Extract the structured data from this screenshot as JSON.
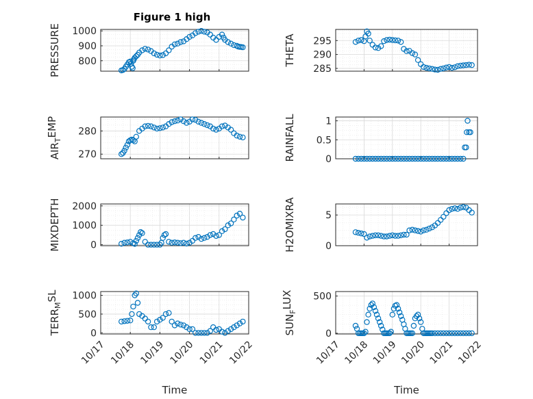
{
  "figure": {
    "title": "Figure 1 high",
    "marker_color": "#0072BD"
  },
  "chart_data": [
    {
      "type": "scatter",
      "title": "Figure 1 high",
      "ylabel": "PRESSURE",
      "xlabel": "",
      "xlim": [
        0,
        5
      ],
      "ylim": [
        730,
        1010
      ],
      "yticks": [
        800,
        900,
        1000
      ],
      "yticklabels": [
        "800",
        "900",
        "1000"
      ],
      "x": [
        0.7,
        0.75,
        0.8,
        0.85,
        0.9,
        0.95,
        1.0,
        1.02,
        1.05,
        1.08,
        1.1,
        1.12,
        1.15,
        1.2,
        1.25,
        1.3,
        1.4,
        1.5,
        1.6,
        1.7,
        1.8,
        1.9,
        2.0,
        2.1,
        2.2,
        2.3,
        2.4,
        2.5,
        2.6,
        2.7,
        2.8,
        2.9,
        3.0,
        3.1,
        3.2,
        3.3,
        3.4,
        3.5,
        3.6,
        3.7,
        3.8,
        3.9,
        4.0,
        4.1,
        4.15,
        4.2,
        4.3,
        4.4,
        4.5,
        4.6,
        4.65,
        4.7,
        4.75,
        4.8
      ],
      "y": [
        735,
        738,
        745,
        760,
        775,
        790,
        795,
        780,
        760,
        750,
        800,
        810,
        820,
        830,
        840,
        855,
        870,
        880,
        875,
        865,
        850,
        840,
        835,
        838,
        850,
        870,
        895,
        910,
        915,
        925,
        930,
        945,
        960,
        970,
        985,
        995,
        1000,
        995,
        990,
        975,
        955,
        940,
        960,
        975,
        955,
        940,
        925,
        915,
        905,
        900,
        895,
        893,
        892,
        890
      ]
    },
    {
      "type": "scatter",
      "ylabel": "THETA",
      "xlabel": "",
      "xlim": [
        0,
        5
      ],
      "ylim": [
        284,
        299
      ],
      "yticks": [
        285,
        290,
        295
      ],
      "yticklabels": [
        "285",
        "290",
        "295"
      ],
      "x": [
        0.7,
        0.8,
        0.9,
        1.0,
        1.05,
        1.1,
        1.15,
        1.2,
        1.3,
        1.4,
        1.5,
        1.6,
        1.7,
        1.8,
        1.9,
        2.0,
        2.1,
        2.2,
        2.3,
        2.4,
        2.5,
        2.6,
        2.7,
        2.8,
        2.9,
        3.0,
        3.1,
        3.2,
        3.3,
        3.4,
        3.5,
        3.6,
        3.7,
        3.8,
        3.9,
        4.0,
        4.1,
        4.2,
        4.3,
        4.4,
        4.5,
        4.6,
        4.7,
        4.8
      ],
      "y": [
        294.5,
        295,
        295.2,
        294.8,
        296.5,
        298.3,
        297.5,
        295,
        293.5,
        292.5,
        292.3,
        293,
        294.8,
        295.2,
        295.3,
        295.2,
        295.1,
        295,
        294.5,
        292,
        291.2,
        291.3,
        290.5,
        290,
        288,
        286.5,
        285.5,
        285.2,
        285,
        284.8,
        284.6,
        284.5,
        284.8,
        285,
        285.3,
        285.5,
        285.2,
        285.4,
        285.8,
        286,
        286.1,
        286.2,
        286.3,
        286.2
      ]
    },
    {
      "type": "scatter",
      "ylabel": "AIR_TEMP",
      "xlabel": "",
      "xlim": [
        0,
        5
      ],
      "ylim": [
        268,
        286
      ],
      "yticks": [
        270,
        280
      ],
      "yticklabels": [
        "270",
        "280"
      ],
      "x": [
        0.7,
        0.75,
        0.8,
        0.85,
        0.9,
        0.95,
        1.0,
        1.05,
        1.1,
        1.15,
        1.2,
        1.3,
        1.4,
        1.5,
        1.6,
        1.7,
        1.8,
        1.9,
        2.0,
        2.1,
        2.2,
        2.3,
        2.4,
        2.5,
        2.6,
        2.7,
        2.8,
        2.9,
        3.0,
        3.1,
        3.2,
        3.3,
        3.4,
        3.5,
        3.6,
        3.7,
        3.8,
        3.9,
        4.0,
        4.1,
        4.2,
        4.3,
        4.4,
        4.5,
        4.6,
        4.7,
        4.8
      ],
      "y": [
        270,
        270.5,
        271.5,
        272.8,
        274,
        275.5,
        276,
        276.3,
        276,
        275.5,
        277.5,
        280,
        281,
        282,
        282.2,
        282,
        281.5,
        281,
        281.2,
        281.5,
        282,
        283,
        283.8,
        284.2,
        284.5,
        285,
        284.2,
        283.5,
        284,
        285,
        284.8,
        284,
        283.5,
        283,
        282.5,
        282,
        281,
        280.5,
        281,
        282,
        282.3,
        281.5,
        280.5,
        279,
        278,
        277.5,
        277.2
      ]
    },
    {
      "type": "scatter",
      "ylabel": "RAINFALL",
      "xlabel": "",
      "xlim": [
        0,
        5
      ],
      "ylim": [
        0,
        1.1
      ],
      "yticks": [
        0,
        0.5,
        1
      ],
      "yticklabels": [
        "0",
        "0.5",
        "1"
      ],
      "x": [
        0.7,
        0.8,
        0.9,
        1.0,
        1.1,
        1.2,
        1.3,
        1.4,
        1.5,
        1.6,
        1.7,
        1.8,
        1.9,
        2.0,
        2.1,
        2.2,
        2.3,
        2.4,
        2.5,
        2.6,
        2.7,
        2.8,
        2.9,
        3.0,
        3.1,
        3.2,
        3.3,
        3.4,
        3.5,
        3.6,
        3.7,
        3.8,
        3.9,
        4.0,
        4.1,
        4.2,
        4.3,
        4.4,
        4.5,
        4.55,
        4.6,
        4.62,
        4.65,
        4.7,
        4.75
      ],
      "y": [
        0,
        0,
        0,
        0,
        0,
        0,
        0,
        0,
        0,
        0,
        0,
        0,
        0,
        0,
        0,
        0,
        0,
        0,
        0,
        0,
        0,
        0,
        0,
        0,
        0,
        0,
        0,
        0,
        0,
        0,
        0,
        0,
        0,
        0,
        0,
        0,
        0,
        0,
        0,
        0.3,
        0.3,
        0.7,
        1.0,
        0.7,
        0.7
      ]
    },
    {
      "type": "scatter",
      "ylabel": "MIXDEPTH",
      "xlabel": "",
      "xlim": [
        0,
        5
      ],
      "ylim": [
        -50,
        2100
      ],
      "yticks": [
        0,
        1000,
        2000
      ],
      "yticklabels": [
        "0",
        "1000",
        "2000"
      ],
      "x": [
        0.7,
        0.8,
        0.9,
        1.0,
        1.1,
        1.15,
        1.2,
        1.25,
        1.3,
        1.35,
        1.4,
        1.5,
        1.6,
        1.7,
        1.8,
        1.9,
        2.0,
        2.05,
        2.1,
        2.15,
        2.2,
        2.3,
        2.4,
        2.5,
        2.6,
        2.7,
        2.8,
        2.9,
        3.0,
        3.1,
        3.2,
        3.3,
        3.4,
        3.5,
        3.6,
        3.7,
        3.8,
        3.9,
        4.0,
        4.1,
        4.2,
        4.3,
        4.4,
        4.5,
        4.6,
        4.7,
        4.8
      ],
      "y": [
        50,
        100,
        120,
        150,
        80,
        40,
        200,
        350,
        500,
        650,
        600,
        150,
        0,
        0,
        0,
        0,
        0,
        100,
        350,
        500,
        550,
        150,
        100,
        120,
        100,
        80,
        100,
        60,
        100,
        200,
        350,
        400,
        300,
        350,
        400,
        500,
        550,
        450,
        500,
        700,
        800,
        1000,
        1100,
        1300,
        1500,
        1600,
        1400
      ]
    },
    {
      "type": "scatter",
      "ylabel": "H2OMIXRA",
      "xlabel": "",
      "xlim": [
        0,
        5
      ],
      "ylim": [
        0,
        6.8
      ],
      "yticks": [
        0,
        5
      ],
      "yticklabels": [
        "0",
        "5"
      ],
      "x": [
        0.7,
        0.8,
        0.9,
        1.0,
        1.1,
        1.2,
        1.3,
        1.4,
        1.5,
        1.6,
        1.7,
        1.8,
        1.9,
        2.0,
        2.1,
        2.2,
        2.3,
        2.4,
        2.5,
        2.6,
        2.7,
        2.8,
        2.9,
        3.0,
        3.1,
        3.2,
        3.3,
        3.4,
        3.5,
        3.6,
        3.7,
        3.8,
        3.9,
        4.0,
        4.1,
        4.2,
        4.3,
        4.4,
        4.5,
        4.6,
        4.7,
        4.8
      ],
      "y": [
        2.2,
        2.1,
        2.0,
        1.9,
        1.3,
        1.5,
        1.6,
        1.7,
        1.7,
        1.6,
        1.5,
        1.5,
        1.6,
        1.7,
        1.6,
        1.6,
        1.7,
        1.8,
        1.8,
        2.5,
        2.6,
        2.5,
        2.4,
        2.3,
        2.5,
        2.6,
        2.8,
        3.0,
        3.3,
        3.7,
        4.2,
        4.7,
        5.3,
        5.8,
        6.0,
        6.1,
        6.0,
        6.2,
        6.3,
        6.2,
        5.8,
        5.4
      ]
    },
    {
      "type": "scatter",
      "ylabel": "TERR_MSL",
      "xlabel": "Time",
      "xlim": [
        0,
        5
      ],
      "ylim": [
        -30,
        1100
      ],
      "yticks": [
        0,
        500,
        1000
      ],
      "yticklabels": [
        "0",
        "500",
        "1000"
      ],
      "xticklabels": [
        "10/17",
        "10/18",
        "10/19",
        "10/20",
        "10/21",
        "10/22"
      ],
      "x": [
        0.7,
        0.8,
        0.9,
        1.0,
        1.05,
        1.1,
        1.15,
        1.2,
        1.25,
        1.3,
        1.4,
        1.5,
        1.6,
        1.7,
        1.8,
        1.9,
        2.0,
        2.1,
        2.2,
        2.3,
        2.4,
        2.5,
        2.6,
        2.7,
        2.8,
        2.9,
        3.0,
        3.1,
        3.2,
        3.3,
        3.4,
        3.5,
        3.6,
        3.7,
        3.8,
        3.9,
        4.0,
        4.1,
        4.2,
        4.3,
        4.4,
        4.5,
        4.6,
        4.7,
        4.8
      ],
      "y": [
        300,
        310,
        320,
        330,
        500,
        700,
        1000,
        1050,
        800,
        500,
        450,
        380,
        300,
        150,
        150,
        300,
        350,
        400,
        500,
        530,
        300,
        200,
        250,
        220,
        200,
        150,
        100,
        100,
        0,
        0,
        0,
        0,
        0,
        50,
        150,
        80,
        100,
        30,
        0,
        50,
        100,
        150,
        200,
        250,
        300
      ]
    },
    {
      "type": "scatter",
      "ylabel": "SUN_FLUX",
      "xlabel": "Time",
      "xlim": [
        0,
        5
      ],
      "ylim": [
        -10,
        560
      ],
      "yticks": [
        0,
        500
      ],
      "yticklabels": [
        "0",
        "500"
      ],
      "xticklabels": [
        "10/17",
        "10/18",
        "10/19",
        "10/20",
        "10/21",
        "10/22"
      ],
      "x": [
        0.7,
        0.75,
        0.8,
        0.85,
        0.9,
        0.95,
        1.0,
        1.05,
        1.1,
        1.15,
        1.2,
        1.25,
        1.3,
        1.35,
        1.4,
        1.45,
        1.5,
        1.55,
        1.6,
        1.65,
        1.7,
        1.75,
        1.8,
        1.85,
        1.9,
        1.95,
        2.0,
        2.05,
        2.1,
        2.15,
        2.2,
        2.25,
        2.3,
        2.35,
        2.4,
        2.45,
        2.5,
        2.55,
        2.6,
        2.65,
        2.7,
        2.75,
        2.8,
        2.85,
        2.9,
        2.95,
        3.0,
        3.05,
        3.1,
        3.15,
        3.2,
        3.25,
        3.3,
        3.35,
        3.4,
        3.5,
        3.6,
        3.7,
        3.8,
        3.9,
        4.0,
        4.1,
        4.2,
        4.3,
        4.4,
        4.5,
        4.6,
        4.7,
        4.8
      ],
      "y": [
        100,
        60,
        0,
        0,
        0,
        0,
        0,
        20,
        150,
        250,
        330,
        380,
        400,
        350,
        300,
        250,
        200,
        150,
        100,
        50,
        0,
        0,
        0,
        0,
        0,
        20,
        250,
        330,
        370,
        380,
        330,
        280,
        230,
        180,
        120,
        60,
        0,
        0,
        0,
        0,
        0,
        100,
        200,
        230,
        250,
        200,
        150,
        60,
        0,
        0,
        0,
        0,
        0,
        0,
        0,
        0,
        0,
        0,
        0,
        0,
        0,
        0,
        0,
        0,
        0,
        0,
        0,
        0,
        0
      ]
    }
  ]
}
